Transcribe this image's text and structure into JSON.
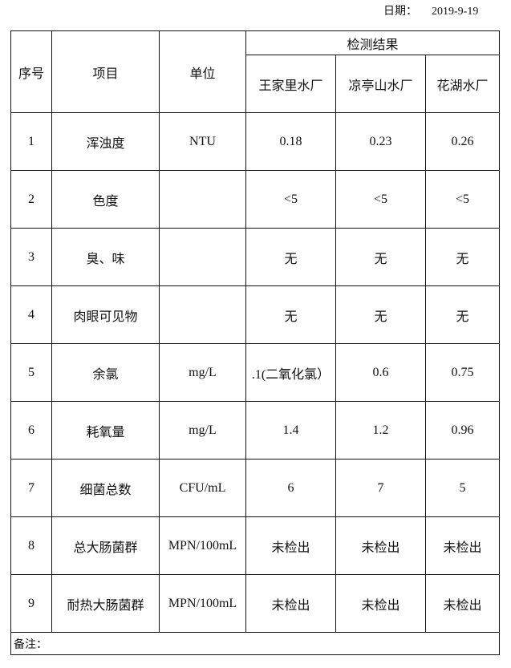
{
  "date": {
    "label": "日期：",
    "value": "2019-9-19"
  },
  "table": {
    "headers": {
      "no": "序号",
      "item": "项目",
      "unit": "单位",
      "results": "检测结果",
      "plants": [
        "王家里水厂",
        "凉亭山水厂",
        "花湖水厂"
      ]
    },
    "rows": [
      {
        "no": "1",
        "item": "浑浊度",
        "unit": "NTU",
        "values": [
          "0.18",
          "0.23",
          "0.26"
        ]
      },
      {
        "no": "2",
        "item": "色度",
        "unit": "",
        "values": [
          "<5",
          "<5",
          "<5"
        ]
      },
      {
        "no": "3",
        "item": "臭、味",
        "unit": "",
        "values": [
          "无",
          "无",
          "无"
        ]
      },
      {
        "no": "4",
        "item": "肉眼可见物",
        "unit": "",
        "values": [
          "无",
          "无",
          "无"
        ]
      },
      {
        "no": "5",
        "item": "余氯",
        "unit": "mg/L",
        "values": [
          ".1(二氧化氯）",
          "0.6",
          "0.75"
        ]
      },
      {
        "no": "6",
        "item": "耗氧量",
        "unit": "mg/L",
        "values": [
          "1.4",
          "1.2",
          "0.96"
        ]
      },
      {
        "no": "7",
        "item": "细菌总数",
        "unit": "CFU/mL",
        "values": [
          "6",
          "7",
          "5"
        ]
      },
      {
        "no": "8",
        "item": "总大肠菌群",
        "unit": "MPN/100mL",
        "values": [
          "未检出",
          "未检出",
          "未检出"
        ]
      },
      {
        "no": "9",
        "item": "耐热大肠菌群",
        "unit": "MPN/100mL",
        "values": [
          "未检出",
          "未检出",
          "未检出"
        ]
      }
    ],
    "note_label": "备注："
  }
}
